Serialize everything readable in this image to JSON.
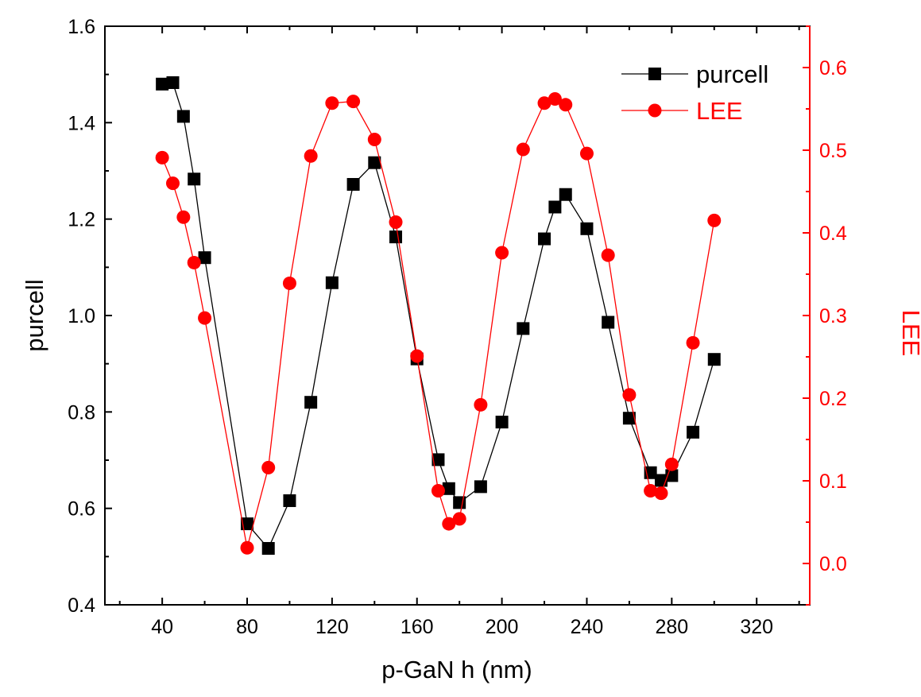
{
  "chart_data": {
    "type": "line",
    "title": "",
    "xlabel": "p-GaN h (nm)",
    "ylabel": "purcell",
    "y2label": "LEE",
    "xlim": [
      13,
      345
    ],
    "ylim": [
      0.4,
      1.6
    ],
    "y2lim": [
      -0.05,
      0.65
    ],
    "xticks": [
      40,
      80,
      120,
      160,
      200,
      240,
      280,
      320
    ],
    "yticks": [
      0.4,
      0.6,
      0.8,
      1.0,
      1.2,
      1.4,
      1.6
    ],
    "y2ticks": [
      0.0,
      0.1,
      0.2,
      0.3,
      0.4,
      0.5,
      0.6
    ],
    "xtick_labels": [
      "40",
      "80",
      "120",
      "160",
      "200",
      "240",
      "280",
      "320"
    ],
    "ytick_labels": [
      "0.4",
      "0.6",
      "0.8",
      "1.0",
      "1.2",
      "1.4",
      "1.6"
    ],
    "y2tick_labels": [
      "0.0",
      "0.1",
      "0.2",
      "0.3",
      "0.4",
      "0.5",
      "0.6"
    ],
    "legend_position": "top-right",
    "series": [
      {
        "name": "purcell",
        "axis": "left",
        "marker": "square",
        "color": "#000000",
        "x": [
          40,
          45,
          50,
          55,
          60,
          80,
          90,
          100,
          110,
          120,
          130,
          140,
          150,
          160,
          170,
          175,
          180,
          190,
          200,
          210,
          220,
          225,
          230,
          240,
          250,
          260,
          270,
          275,
          280,
          290,
          300
        ],
        "y": [
          1.48,
          1.483,
          1.413,
          1.283,
          1.12,
          0.568,
          0.517,
          0.616,
          0.82,
          1.068,
          1.272,
          1.317,
          1.163,
          0.91,
          0.701,
          0.641,
          0.612,
          0.645,
          0.779,
          0.973,
          1.159,
          1.225,
          1.251,
          1.18,
          0.986,
          0.787,
          0.674,
          0.658,
          0.668,
          0.758,
          0.909
        ]
      },
      {
        "name": "LEE",
        "axis": "right",
        "marker": "circle",
        "color": "#ff0000",
        "x": [
          40,
          45,
          50,
          55,
          60,
          80,
          90,
          100,
          110,
          120,
          130,
          140,
          150,
          160,
          170,
          175,
          180,
          190,
          200,
          210,
          220,
          225,
          230,
          240,
          250,
          260,
          270,
          275,
          280,
          290,
          300
        ],
        "y": [
          0.491,
          0.46,
          0.419,
          0.364,
          0.297,
          0.019,
          0.116,
          0.339,
          0.493,
          0.557,
          0.559,
          0.513,
          0.413,
          0.251,
          0.088,
          0.048,
          0.054,
          0.192,
          0.376,
          0.501,
          0.557,
          0.562,
          0.555,
          0.496,
          0.373,
          0.204,
          0.088,
          0.085,
          0.12,
          0.267,
          0.415
        ]
      }
    ]
  }
}
